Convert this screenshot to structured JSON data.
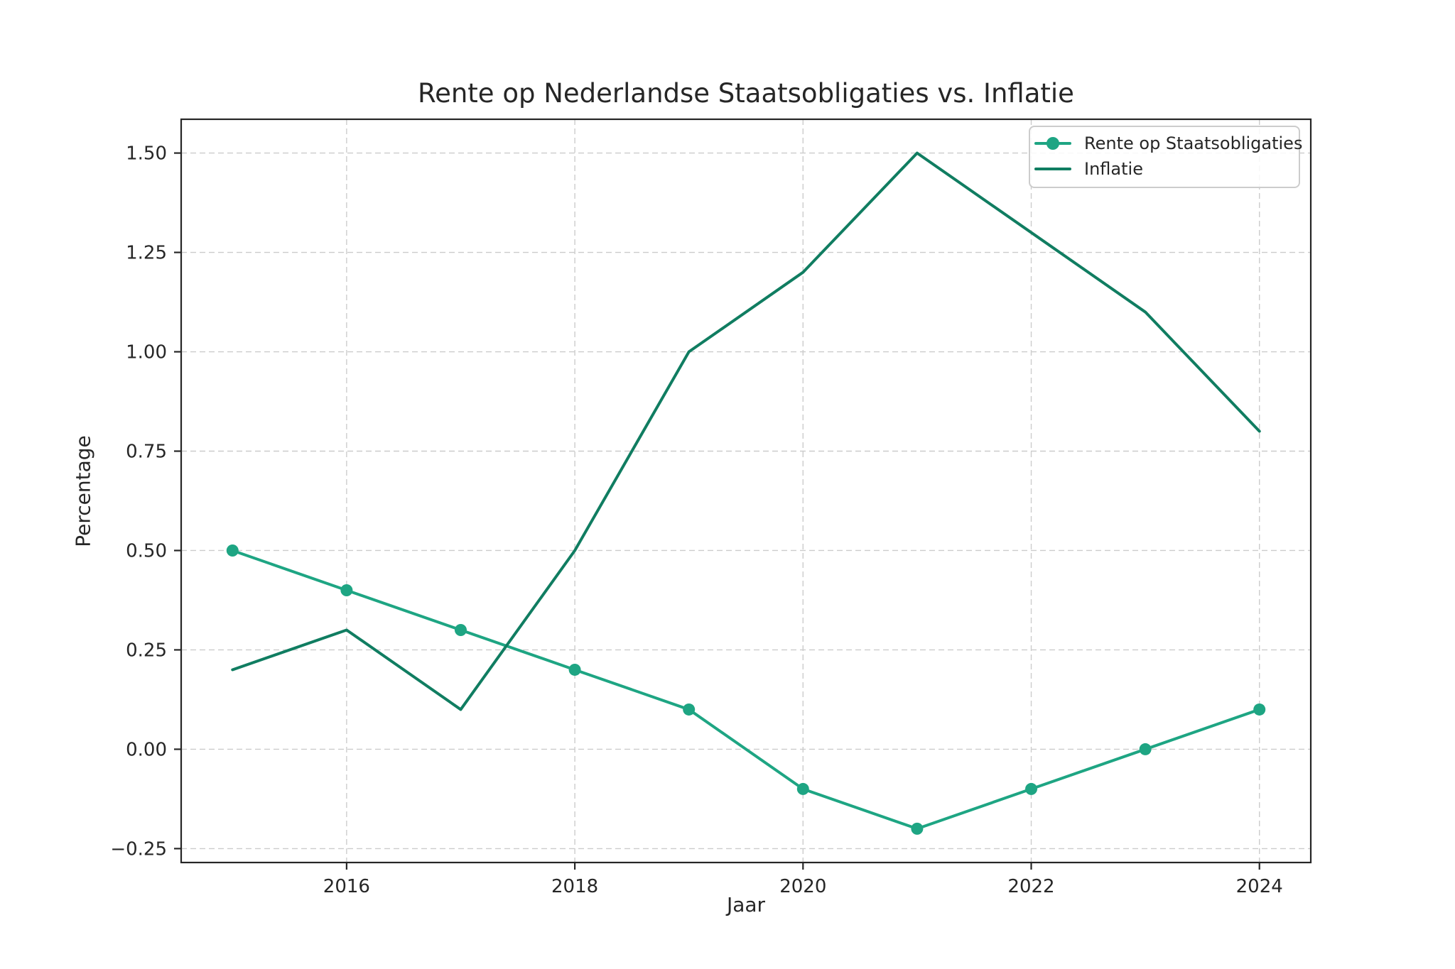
{
  "chart_data": {
    "type": "line",
    "title": "Rente op Nederlandse Staatsobligaties vs. Inflatie",
    "xlabel": "Jaar",
    "ylabel": "Percentage",
    "x": [
      2015,
      2016,
      2017,
      2018,
      2019,
      2020,
      2021,
      2022,
      2023,
      2024
    ],
    "series": [
      {
        "name": "Rente op Staatsobligaties",
        "color": "#1ea583",
        "marker": "circle",
        "values": [
          0.5,
          0.4,
          0.3,
          0.2,
          0.1,
          -0.1,
          -0.2,
          -0.1,
          0.0,
          0.1
        ]
      },
      {
        "name": "Inflatie",
        "color": "#107d61",
        "marker": "none",
        "values": [
          0.2,
          0.3,
          0.1,
          0.5,
          1.0,
          1.2,
          1.5,
          1.3,
          1.1,
          0.8
        ]
      }
    ],
    "xticks": {
      "values": [
        2016,
        2018,
        2020,
        2022,
        2024
      ],
      "labels": [
        "2016",
        "2018",
        "2020",
        "2022",
        "2024"
      ]
    },
    "yticks": {
      "values": [
        -0.25,
        0.0,
        0.25,
        0.5,
        0.75,
        1.0,
        1.25,
        1.5
      ],
      "labels": [
        "−0.25",
        "0.00",
        "0.25",
        "0.50",
        "0.75",
        "1.00",
        "1.25",
        "1.50"
      ]
    },
    "xlim": [
      2014.55,
      2024.45
    ],
    "ylim": [
      -0.285,
      1.585
    ],
    "grid": true,
    "grid_style": "dashed",
    "legend_position": "upper right"
  },
  "style": {
    "background": "#ffffff",
    "grid_color": "#cccccc",
    "spine_color": "#262626",
    "text_color": "#262626",
    "legend_border": "#cccccc"
  }
}
